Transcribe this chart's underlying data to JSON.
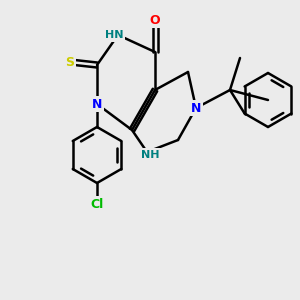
{
  "bg": "#ebebeb",
  "bond_color": "#000000",
  "bond_lw": 1.8,
  "atom_colors": {
    "N": "#0000ff",
    "O": "#ff0000",
    "S": "#cccc00",
    "Cl": "#00bb00",
    "NH": "#008080",
    "C": "#000000"
  },
  "font_size": 9,
  "font_size_small": 8
}
